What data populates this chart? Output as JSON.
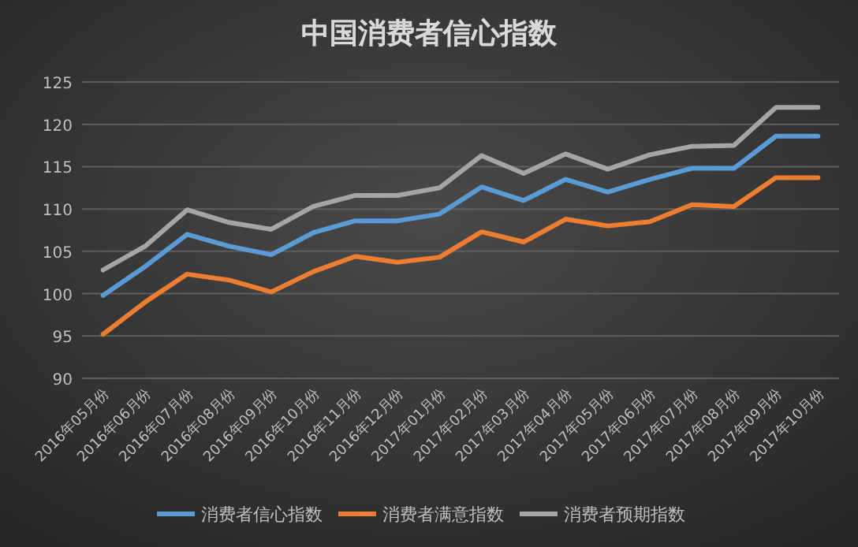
{
  "chart_data": {
    "type": "line",
    "title": "中国消费者信心指数",
    "categories": [
      "2016年05月份",
      "2016年06月份",
      "2016年07月份",
      "2016年08月份",
      "2016年09月份",
      "2016年10月份",
      "2016年11月份",
      "2016年12月份",
      "2017年01月份",
      "2017年02月份",
      "2017年03月份",
      "2017年04月份",
      "2017年05月份",
      "2017年06月份",
      "2017年07月份",
      "2017年08月份",
      "2017年09月份",
      "2017年10月份"
    ],
    "series": [
      {
        "name": "消费者信心指数",
        "color": "#5b9bd5",
        "values": [
          99.8,
          103.2,
          107.0,
          105.6,
          104.6,
          107.2,
          108.6,
          108.6,
          109.4,
          112.6,
          111.0,
          113.5,
          112.0,
          113.5,
          114.8,
          114.8,
          118.6,
          118.6
        ]
      },
      {
        "name": "消费者满意指数",
        "color": "#ed7d31",
        "values": [
          95.2,
          99.0,
          102.3,
          101.6,
          100.2,
          102.6,
          104.4,
          103.7,
          104.3,
          107.3,
          106.1,
          108.8,
          108.0,
          108.5,
          110.5,
          110.3,
          113.7,
          113.7
        ]
      },
      {
        "name": "消费者预期指数",
        "color": "#a5a5a5",
        "values": [
          102.8,
          105.6,
          109.9,
          108.4,
          107.6,
          110.3,
          111.6,
          111.6,
          112.5,
          116.3,
          114.2,
          116.5,
          114.7,
          116.4,
          117.4,
          117.5,
          122.0,
          122.0
        ]
      }
    ],
    "ylim": [
      90,
      125
    ],
    "yticks": [
      90,
      95,
      100,
      105,
      110,
      115,
      120,
      125
    ],
    "grid": "y",
    "legend": "bottom",
    "line_style": "solid",
    "marker": "none"
  }
}
